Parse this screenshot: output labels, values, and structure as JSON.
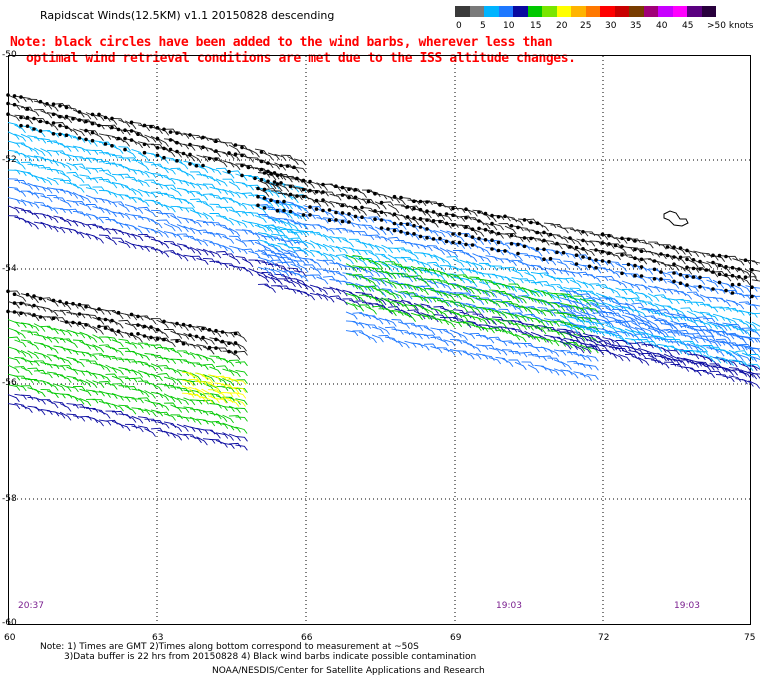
{
  "title": "Rapidscat Winds(12.5KM) v1.1 20150828 descending",
  "note": {
    "line1": "Note: black circles have been added to the wind barbs, wherever less than",
    "line2": "optimal wind retrieval conditions are met due to the ISS altitude changes."
  },
  "legend": {
    "labels": [
      "0",
      "5",
      "10",
      "15",
      "20",
      "25",
      "30",
      "35",
      "40",
      "45",
      ">50 knots"
    ],
    "colors": [
      "#3a3a3a",
      "#7a7a7a",
      "#00b4ff",
      "#1e78ff",
      "#0a0aa0",
      "#00c800",
      "#78e600",
      "#ffff00",
      "#ffb400",
      "#ff7800",
      "#ff0000",
      "#c80000",
      "#783c00",
      "#a00078",
      "#c800ff",
      "#ff00ff",
      "#5a0080",
      "#28003c"
    ]
  },
  "axes": {
    "lat_labels": [
      "-50",
      "-52",
      "-54",
      "-56",
      "-58",
      "-60"
    ],
    "lon_labels": [
      "60",
      "63",
      "66",
      "69",
      "72",
      "75"
    ]
  },
  "times": [
    "20:37",
    "19:03",
    "19:03"
  ],
  "footer": {
    "note_line1": "Note: 1) Times are GMT 2)Times along bottom correspond to measurement at ~50S",
    "note_line2": "3)Data buffer is 22 hrs from 20150828 4) Black wind barbs indicate possible contamination",
    "credit": "NOAA/NESDIS/Center for Satellite Applications and Research"
  }
}
